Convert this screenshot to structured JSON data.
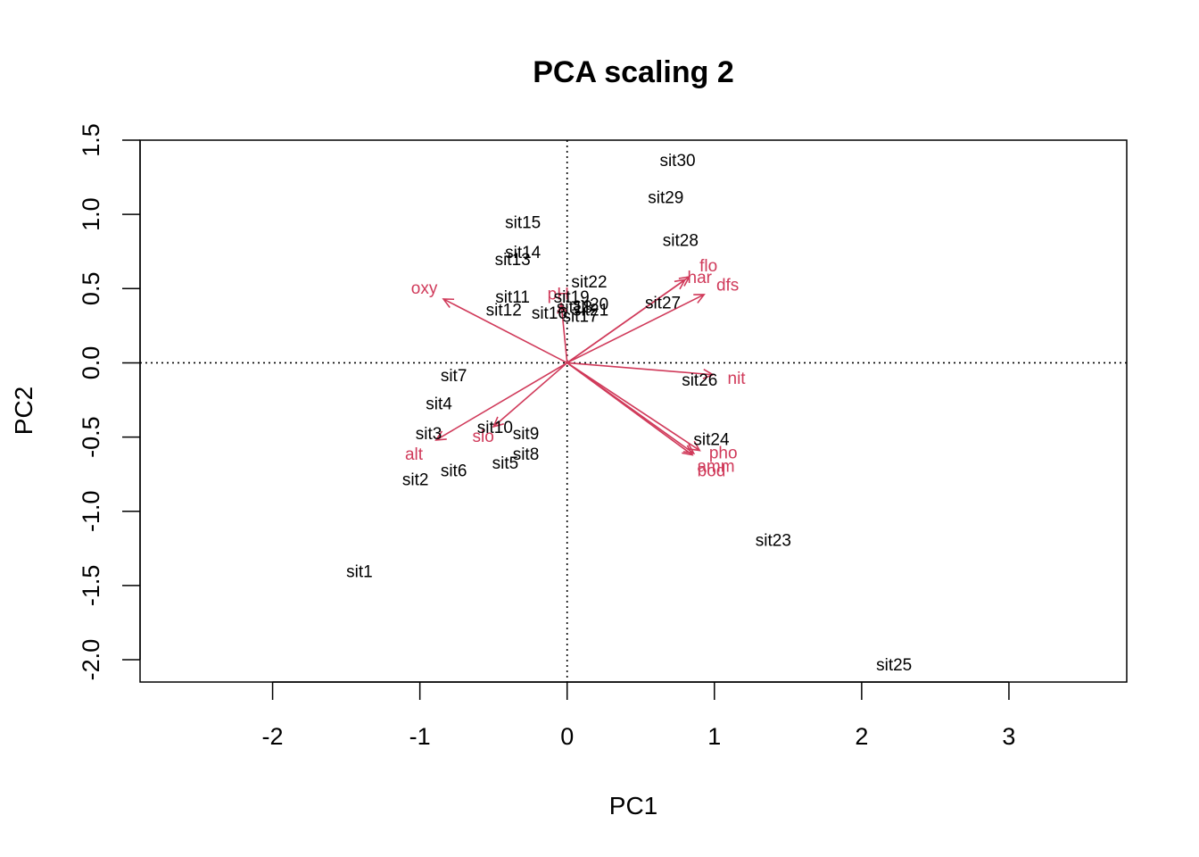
{
  "chart_data": {
    "type": "scatter",
    "title": "PCA scaling 2",
    "xlabel": "PC1",
    "ylabel": "PC2",
    "xlim": [
      -2.9,
      3.8
    ],
    "ylim": [
      -2.15,
      1.5
    ],
    "x_ticks": [
      -2,
      -1,
      0,
      1,
      2,
      3
    ],
    "y_ticks": [
      -2.0,
      -1.5,
      -1.0,
      -0.5,
      0.0,
      0.5,
      1.0,
      1.5
    ],
    "x_tick_labels": [
      "-2",
      "-1",
      "0",
      "1",
      "2",
      "3"
    ],
    "y_tick_labels": [
      "-2.0",
      "-1.5",
      "-1.0",
      "-0.5",
      "0.0",
      "0.5",
      "1.0",
      "1.5"
    ],
    "reference_lines": {
      "x": 0,
      "y": 0,
      "style": "dotted"
    },
    "grid": false,
    "colors": {
      "sites": "#000000",
      "variables": "#d03a5a"
    },
    "sites": [
      {
        "label": "sit1",
        "x": -1.41,
        "y": -1.41
      },
      {
        "label": "sit2",
        "x": -1.03,
        "y": -0.79
      },
      {
        "label": "sit3",
        "x": -0.94,
        "y": -0.48
      },
      {
        "label": "sit4",
        "x": -0.87,
        "y": -0.28
      },
      {
        "label": "sit5",
        "x": -0.42,
        "y": -0.68
      },
      {
        "label": "sit6",
        "x": -0.77,
        "y": -0.73
      },
      {
        "label": "sit7",
        "x": -0.77,
        "y": -0.09
      },
      {
        "label": "sit8",
        "x": -0.28,
        "y": -0.62
      },
      {
        "label": "sit9",
        "x": -0.28,
        "y": -0.48
      },
      {
        "label": "sit10",
        "x": -0.49,
        "y": -0.44
      },
      {
        "label": "sit11",
        "x": -0.37,
        "y": 0.44
      },
      {
        "label": "sit12",
        "x": -0.43,
        "y": 0.35
      },
      {
        "label": "sit13",
        "x": -0.37,
        "y": 0.69
      },
      {
        "label": "sit14",
        "x": -0.3,
        "y": 0.74
      },
      {
        "label": "sit15",
        "x": -0.3,
        "y": 0.94
      },
      {
        "label": "sit16",
        "x": -0.12,
        "y": 0.33
      },
      {
        "label": "sit17",
        "x": 0.09,
        "y": 0.31
      },
      {
        "label": "sit18",
        "x": 0.05,
        "y": 0.37
      },
      {
        "label": "sit19",
        "x": 0.03,
        "y": 0.44
      },
      {
        "label": "sit20",
        "x": 0.16,
        "y": 0.39
      },
      {
        "label": "sit21",
        "x": 0.16,
        "y": 0.35
      },
      {
        "label": "sit22",
        "x": 0.15,
        "y": 0.54
      },
      {
        "label": "sit23",
        "x": 1.4,
        "y": -1.2
      },
      {
        "label": "sit24",
        "x": 0.98,
        "y": -0.52
      },
      {
        "label": "sit25",
        "x": 2.22,
        "y": -2.04
      },
      {
        "label": "sit26",
        "x": 0.9,
        "y": -0.12
      },
      {
        "label": "sit27",
        "x": 0.65,
        "y": 0.4
      },
      {
        "label": "sit28",
        "x": 0.77,
        "y": 0.82
      },
      {
        "label": "sit29",
        "x": 0.67,
        "y": 1.11
      },
      {
        "label": "sit30",
        "x": 0.75,
        "y": 1.36
      }
    ],
    "variables": [
      {
        "label": "alt",
        "x": -0.89,
        "y": -0.52,
        "lx": -1.04,
        "ly": -0.62
      },
      {
        "label": "slo",
        "x": -0.5,
        "y": -0.43,
        "lx": -0.57,
        "ly": -0.5
      },
      {
        "label": "flo",
        "x": 0.83,
        "y": 0.58,
        "lx": 0.96,
        "ly": 0.65
      },
      {
        "label": "pH",
        "x": -0.04,
        "y": 0.4,
        "lx": -0.06,
        "ly": 0.46
      },
      {
        "label": "har",
        "x": 0.8,
        "y": 0.56,
        "lx": 0.9,
        "ly": 0.57
      },
      {
        "label": "pho",
        "x": 0.9,
        "y": -0.59,
        "lx": 1.06,
        "ly": -0.61
      },
      {
        "label": "nit",
        "x": 0.99,
        "y": -0.08,
        "lx": 1.15,
        "ly": -0.11
      },
      {
        "label": "amm",
        "x": 0.86,
        "y": -0.61,
        "lx": 1.01,
        "ly": -0.7
      },
      {
        "label": "oxy",
        "x": -0.84,
        "y": 0.43,
        "lx": -0.97,
        "ly": 0.5
      },
      {
        "label": "bod",
        "x": 0.85,
        "y": -0.62,
        "lx": 0.98,
        "ly": -0.73
      },
      {
        "label": "dfs",
        "x": 0.93,
        "y": 0.46,
        "lx": 1.09,
        "ly": 0.52
      }
    ]
  }
}
